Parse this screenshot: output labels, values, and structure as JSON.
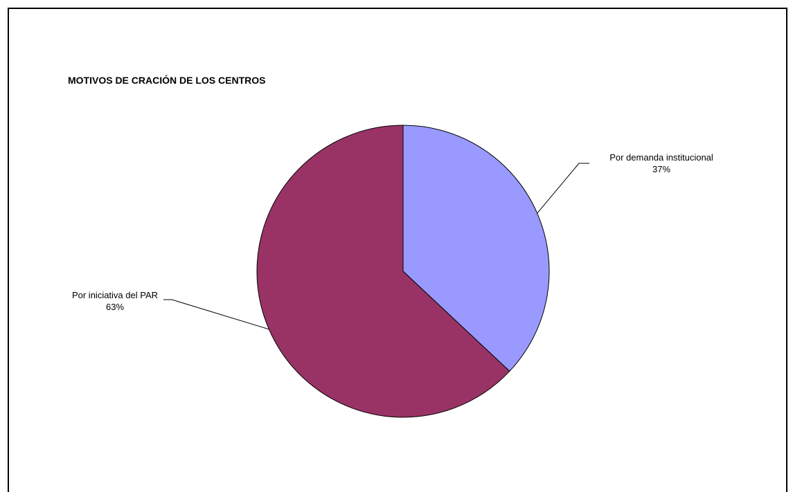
{
  "chart_data": {
    "type": "pie",
    "title": "MOTIVOS DE CRACIÓN DE LOS CENTROS",
    "categories": [
      "Por demanda institucional",
      "Por iniciativa del PAR"
    ],
    "values": [
      37,
      63
    ],
    "value_labels": [
      "37%",
      "63%"
    ],
    "colors": [
      "#9999FF",
      "#993366"
    ],
    "legend": "none",
    "data_labels": "outside-with-leader-lines"
  }
}
